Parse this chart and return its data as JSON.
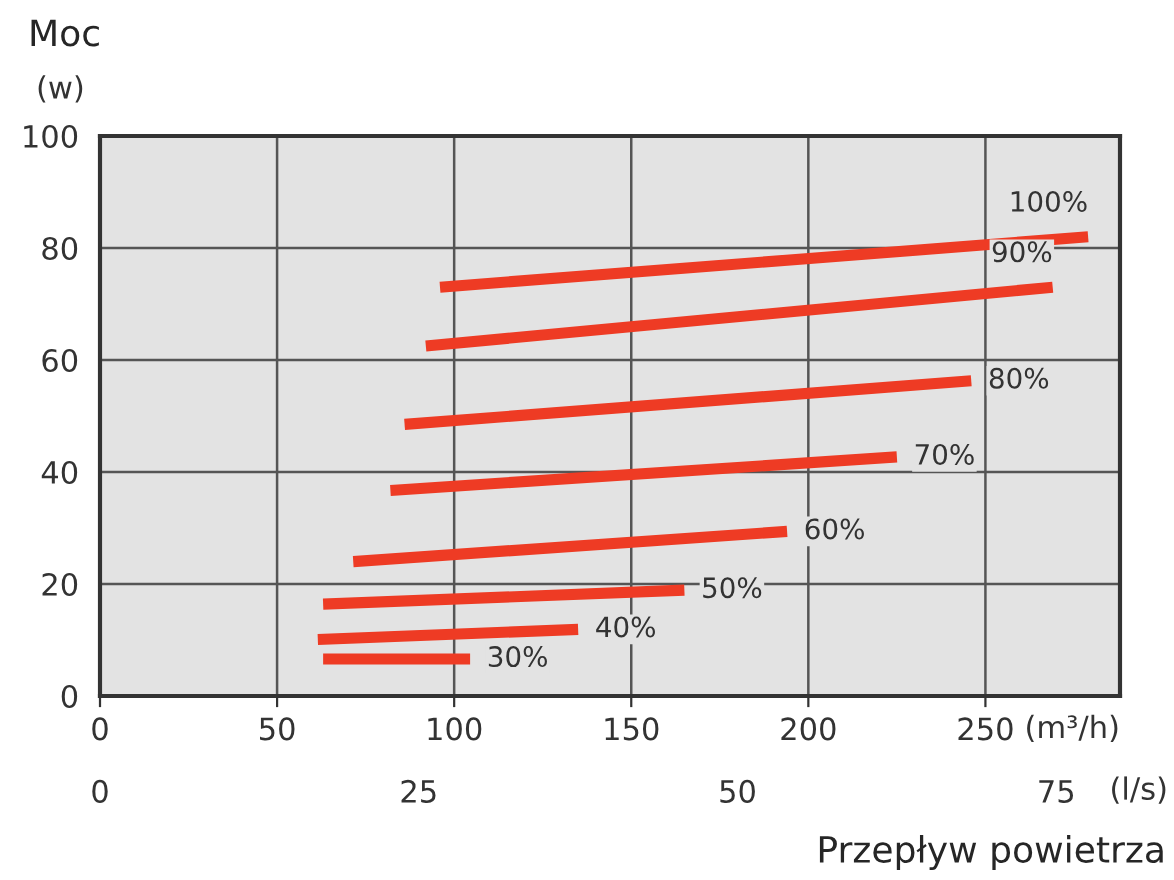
{
  "chart_data": {
    "type": "line",
    "title": "Moc",
    "ylabel": "(w)",
    "xlabel": "(m³/h)",
    "x2label": "(l/s)",
    "annotations": [
      "Przepływ powietrza"
    ],
    "xlim": [
      0,
      288
    ],
    "xticks": [
      0,
      50,
      100,
      150,
      200,
      250
    ],
    "x2lim": [
      0,
      80
    ],
    "x2ticks": [
      0,
      25,
      50,
      75
    ],
    "ylim": [
      0,
      100
    ],
    "yticks": [
      0,
      20,
      40,
      60,
      80,
      100
    ],
    "grid": true,
    "marker": "none",
    "line_style": "solid",
    "series": [
      {
        "name": "100%",
        "color": "#ee3b24",
        "x": [
          96,
          279
        ],
        "values": [
          73,
          82
        ]
      },
      {
        "name": "90%",
        "color": "#ee3b24",
        "x": [
          92,
          269
        ],
        "values": [
          62.5,
          73
        ]
      },
      {
        "name": "80%",
        "color": "#ee3b24",
        "x": [
          86,
          246
        ],
        "values": [
          48.5,
          56.3
        ]
      },
      {
        "name": "70%",
        "color": "#ee3b24",
        "x": [
          82,
          225
        ],
        "values": [
          36.7,
          42.7
        ]
      },
      {
        "name": "60%",
        "color": "#ee3b24",
        "x": [
          71.5,
          194
        ],
        "values": [
          24,
          29.4
        ]
      },
      {
        "name": "50%",
        "color": "#ee3b24",
        "x": [
          63,
          165
        ],
        "values": [
          16.4,
          18.9
        ]
      },
      {
        "name": "40%",
        "color": "#ee3b24",
        "x": [
          61.5,
          135
        ],
        "values": [
          10.1,
          11.9
        ]
      },
      {
        "name": "30%",
        "color": "#ee3b24",
        "x": [
          63,
          104.5
        ],
        "values": [
          6.6,
          6.6
        ]
      }
    ]
  }
}
